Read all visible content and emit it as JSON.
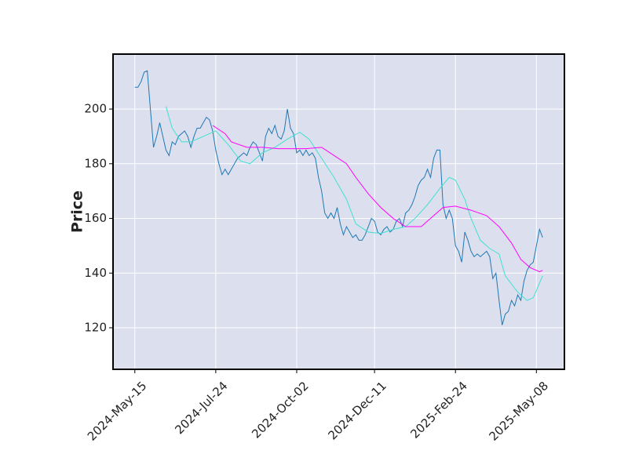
{
  "chart_data": {
    "type": "line",
    "y_label": "Price",
    "xlim": [
      -7,
      138
    ],
    "ylim": [
      104.8,
      220.1
    ],
    "xticks": [
      {
        "value": 0,
        "label": "2024-May-15"
      },
      {
        "value": 26,
        "label": "2024-Jul-24"
      },
      {
        "value": 52,
        "label": "2024-Oct-02"
      },
      {
        "value": 77,
        "label": "2024-Dec-11"
      },
      {
        "value": 103,
        "label": "2025-Feb-24"
      },
      {
        "value": 129,
        "label": "2025-May-08"
      }
    ],
    "yticks": [
      120,
      140,
      160,
      180,
      200
    ],
    "grid": true,
    "background": "#dce0ee",
    "series": [
      {
        "color": "#1f77b4",
        "x": [
          0,
          1,
          2,
          3,
          4,
          5,
          6,
          7,
          8,
          9,
          10,
          11,
          12,
          13,
          14,
          15,
          16,
          17,
          18,
          19,
          20,
          21,
          22,
          23,
          24,
          25,
          26,
          27,
          28,
          29,
          30,
          31,
          32,
          33,
          34,
          35,
          36,
          37,
          38,
          39,
          40,
          41,
          42,
          43,
          44,
          45,
          46,
          47,
          48,
          49,
          50,
          51,
          52,
          53,
          54,
          55,
          56,
          57,
          58,
          59,
          60,
          61,
          62,
          63,
          64,
          65,
          66,
          67,
          68,
          69,
          70,
          71,
          72,
          73,
          74,
          75,
          76,
          77,
          78,
          79,
          80,
          81,
          82,
          83,
          84,
          85,
          86,
          87,
          88,
          89,
          90,
          91,
          92,
          93,
          94,
          95,
          96,
          97,
          98,
          99,
          100,
          101,
          102,
          103,
          104,
          105,
          106,
          107,
          108,
          109,
          110,
          111,
          112,
          113,
          114,
          115,
          116,
          117,
          118,
          119,
          120,
          121,
          122,
          123,
          124,
          125,
          126,
          127,
          128,
          129,
          130,
          131
        ],
        "values": [
          208,
          208,
          210,
          213.5,
          214,
          200,
          186,
          190,
          195,
          190,
          185,
          183,
          188,
          187,
          190,
          191,
          192,
          190,
          186,
          190,
          193,
          193,
          195,
          197,
          196,
          192,
          185,
          180,
          176,
          178,
          176,
          178,
          180,
          182,
          183,
          184,
          183,
          186,
          188,
          187,
          184,
          181,
          190,
          193,
          191,
          194,
          190,
          189,
          192,
          200,
          193,
          191,
          184,
          185,
          183,
          185,
          183,
          184,
          182,
          175,
          170,
          162,
          160,
          162,
          160,
          164,
          158,
          154,
          157,
          155,
          153,
          154,
          152,
          152,
          154,
          157,
          160,
          159,
          155,
          154,
          156,
          157,
          155,
          156,
          159,
          160,
          157,
          162,
          163,
          165,
          168,
          172,
          174,
          175,
          178,
          175,
          182,
          185,
          185,
          165,
          160,
          163,
          160,
          150,
          148,
          144,
          155,
          152,
          148,
          146,
          147,
          146,
          147,
          148,
          146,
          138,
          140,
          130,
          121,
          125,
          126,
          130,
          128,
          132,
          130,
          137,
          141,
          143,
          144,
          150,
          156,
          153
        ]
      },
      {
        "color": "#40e0d0",
        "x": [
          10,
          12,
          15,
          18,
          22,
          26,
          30,
          34,
          37,
          41,
          45,
          49,
          53,
          56,
          60,
          64,
          68,
          71,
          75,
          79,
          83,
          87,
          90,
          94,
          98,
          101,
          103,
          106,
          108,
          111,
          114,
          117,
          119,
          123,
          126,
          128,
          131
        ],
        "values": [
          201,
          193,
          188,
          188,
          190,
          192,
          187,
          181,
          180,
          184,
          186,
          189,
          191.5,
          189,
          182,
          175,
          167,
          158,
          155,
          154.5,
          156,
          157,
          160,
          165,
          171,
          175,
          174,
          167,
          160,
          152,
          149,
          147,
          139,
          133,
          130,
          131,
          139
        ]
      },
      {
        "color": "#ff00ff",
        "x": [
          25,
          29,
          31,
          36,
          41,
          46,
          51,
          55,
          60,
          64,
          68,
          71,
          75,
          79,
          83,
          87,
          92,
          95,
          99,
          103,
          108,
          113,
          117,
          121,
          124,
          127,
          130,
          131
        ],
        "values": [
          194,
          191,
          188,
          186,
          186,
          185.5,
          185.5,
          185.5,
          186,
          183,
          180,
          175,
          169,
          164,
          160,
          157,
          157,
          160,
          164,
          164.5,
          163,
          161,
          157,
          151,
          145,
          142,
          140.5,
          141
        ]
      }
    ]
  }
}
